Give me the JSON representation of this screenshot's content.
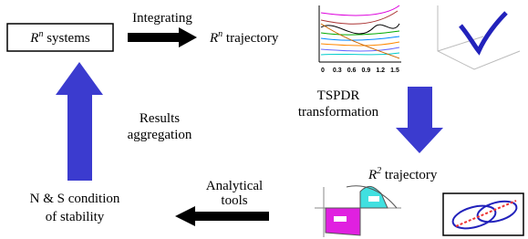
{
  "nodes": [
    {
      "base": "R",
      "sup": "n",
      "rest": " systems"
    },
    {
      "base": "R",
      "sup": "n",
      "rest": " trajectory"
    },
    {
      "base": "R",
      "sup": "2",
      "rest": " trajectory"
    },
    {
      "lines": [
        "N & S condition",
        "of stability"
      ]
    }
  ],
  "edges": [
    {
      "lines": [
        "Integrating"
      ]
    },
    {
      "lines": [
        "TSPDR",
        "transformation"
      ]
    },
    {
      "lines": [
        "Analytical",
        "tools"
      ]
    },
    {
      "lines": [
        "Results",
        "aggregation"
      ]
    }
  ],
  "figures": [
    {
      "xtick_labels": [
        "0",
        "0.3",
        "0.6",
        "0.9",
        "1.2",
        "1.5"
      ]
    }
  ]
}
